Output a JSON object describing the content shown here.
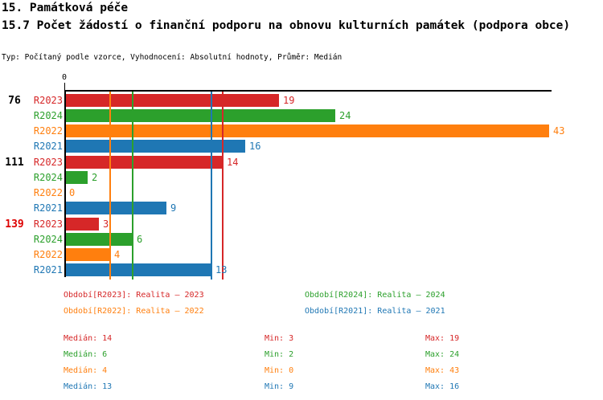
{
  "header": {
    "title_line1": "15. Památková péče",
    "title_line2": "15.7 Počet žádostí o finanční podporu na obnovu kulturních památek (podpora obce)",
    "meta": "Typ: Počítaný podle vzorce, Vyhodnocení: Absolutní hodnoty, Průměr: Medián"
  },
  "colors": {
    "R2023": "#d62728",
    "R2024": "#2ca02c",
    "R2022": "#ff7f0e",
    "R2021": "#1f77b4",
    "highlight_label": "#dd0000",
    "text": "#000000",
    "axis": "#000000"
  },
  "chart_data": {
    "type": "bar",
    "orientation": "horizontal",
    "x_axis": {
      "origin_label": "0",
      "max": 43
    },
    "series_order": [
      "R2023",
      "R2024",
      "R2022",
      "R2021"
    ],
    "groups": [
      {
        "label": "76",
        "highlight": false,
        "bars": [
          {
            "series": "R2023",
            "value": 19
          },
          {
            "series": "R2024",
            "value": 24
          },
          {
            "series": "R2022",
            "value": 43
          },
          {
            "series": "R2021",
            "value": 16
          }
        ]
      },
      {
        "label": "111",
        "highlight": false,
        "bars": [
          {
            "series": "R2023",
            "value": 14
          },
          {
            "series": "R2024",
            "value": 2
          },
          {
            "series": "R2022",
            "value": 0
          },
          {
            "series": "R2021",
            "value": 9
          }
        ]
      },
      {
        "label": "139",
        "highlight": true,
        "bars": [
          {
            "series": "R2023",
            "value": 3
          },
          {
            "series": "R2024",
            "value": 6
          },
          {
            "series": "R2022",
            "value": 4
          },
          {
            "series": "R2021",
            "value": 13
          }
        ]
      }
    ],
    "median_lines": [
      {
        "series": "R2022",
        "value": 4
      },
      {
        "series": "R2024",
        "value": 6
      },
      {
        "series": "R2021",
        "value": 13
      },
      {
        "series": "R2023",
        "value": 14
      }
    ]
  },
  "legend": {
    "items": [
      {
        "series": "R2023",
        "label": "Období[R2023]: Realita – 2023"
      },
      {
        "series": "R2024",
        "label": "Období[R2024]: Realita – 2024"
      },
      {
        "series": "R2022",
        "label": "Období[R2022]: Realita – 2022"
      },
      {
        "series": "R2021",
        "label": "Období[R2021]: Realita – 2021"
      }
    ]
  },
  "stats": {
    "rows": [
      {
        "series": "R2023",
        "median": "Medián: 14",
        "min": "Min: 3",
        "max": "Max: 19"
      },
      {
        "series": "R2024",
        "median": "Medián: 6",
        "min": "Min: 2",
        "max": "Max: 24"
      },
      {
        "series": "R2022",
        "median": "Medián: 4",
        "min": "Min: 0",
        "max": "Max: 43"
      },
      {
        "series": "R2021",
        "median": "Medián: 13",
        "min": "Min: 9",
        "max": "Max: 16"
      }
    ]
  }
}
